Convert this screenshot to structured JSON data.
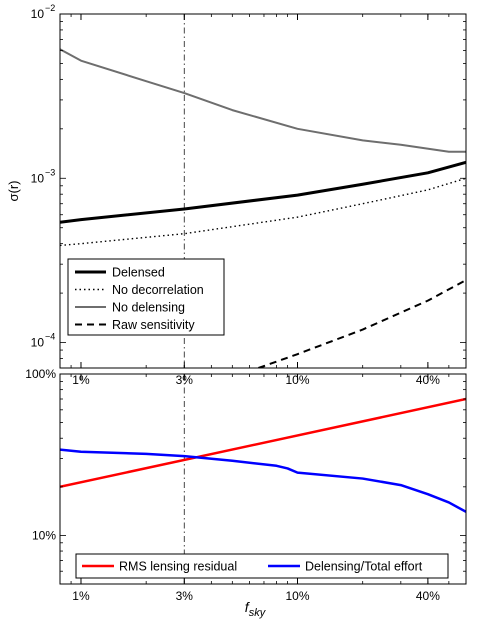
{
  "chart_data": [
    {
      "type": "line",
      "ylabel": "σ(r)",
      "yscale": "log",
      "xscale": "log",
      "xlim": [
        0.008,
        0.6
      ],
      "ylim": [
        7e-05,
        0.01
      ],
      "grid": false,
      "legend_position": "bottom-left",
      "x_ticks": [
        {
          "value": 0.01,
          "label": "1%"
        },
        {
          "value": 0.03,
          "label": "3%"
        },
        {
          "value": 0.1,
          "label": "10%"
        },
        {
          "value": 0.4,
          "label": "40%"
        }
      ],
      "y_ticks": [
        {
          "value": 0.0001,
          "base": "10",
          "exp": "−4"
        },
        {
          "value": 0.001,
          "base": "10",
          "exp": "−3"
        },
        {
          "value": 0.01,
          "base": "10",
          "exp": "−2"
        }
      ],
      "vline": {
        "x": 0.03,
        "style": "dash-dot"
      },
      "series": [
        {
          "name": "Delensed",
          "color": "#000000",
          "style": "solid-thick",
          "x": [
            0.008,
            0.01,
            0.03,
            0.1,
            0.2,
            0.4,
            0.6
          ],
          "y": [
            0.00054,
            0.00056,
            0.00065,
            0.00079,
            0.00092,
            0.00108,
            0.00125
          ]
        },
        {
          "name": "No decorrelation",
          "color": "#000000",
          "style": "dotted",
          "x": [
            0.008,
            0.01,
            0.03,
            0.1,
            0.2,
            0.4,
            0.6
          ],
          "y": [
            0.00039,
            0.0004,
            0.00046,
            0.00058,
            0.0007,
            0.00085,
            0.001
          ]
        },
        {
          "name": "No delensing",
          "color": "#6e6e6e",
          "style": "solid",
          "x": [
            0.008,
            0.01,
            0.02,
            0.03,
            0.05,
            0.1,
            0.2,
            0.3,
            0.5,
            0.6
          ],
          "y": [
            0.0061,
            0.0052,
            0.0039,
            0.0033,
            0.0026,
            0.002,
            0.0017,
            0.0016,
            0.00145,
            0.00145
          ]
        },
        {
          "name": "Raw sensitivity",
          "color": "#000000",
          "style": "dashed",
          "x": [
            0.066,
            0.1,
            0.2,
            0.4,
            0.6
          ],
          "y": [
            7e-05,
            8.5e-05,
            0.00012,
            0.00018,
            0.00024
          ]
        }
      ]
    },
    {
      "type": "line",
      "xlabel_base": "f",
      "xlabel_sub": "sky",
      "yscale": "log",
      "xscale": "log",
      "xlim": [
        0.008,
        0.6
      ],
      "ylim": [
        0.05,
        1.0
      ],
      "grid": false,
      "legend_position": "bottom",
      "x_ticks": [
        {
          "value": 0.01,
          "label": "1%"
        },
        {
          "value": 0.03,
          "label": "3%"
        },
        {
          "value": 0.1,
          "label": "10%"
        },
        {
          "value": 0.4,
          "label": "40%"
        }
      ],
      "y_ticks": [
        {
          "value": 0.1,
          "label": "10%"
        },
        {
          "value": 1.0,
          "label": "100%"
        }
      ],
      "vline": {
        "x": 0.03,
        "style": "dash-dot"
      },
      "series": [
        {
          "name": "RMS lensing residual",
          "color": "#ff0000",
          "x": [
            0.008,
            0.6
          ],
          "y": [
            0.2,
            0.7
          ]
        },
        {
          "name": "Delensing/Total effort",
          "color": "#0000ff",
          "x": [
            0.008,
            0.01,
            0.02,
            0.03,
            0.05,
            0.08,
            0.09,
            0.1,
            0.2,
            0.3,
            0.4,
            0.5,
            0.6
          ],
          "y": [
            0.34,
            0.33,
            0.32,
            0.31,
            0.29,
            0.27,
            0.26,
            0.245,
            0.225,
            0.205,
            0.18,
            0.16,
            0.14
          ]
        }
      ]
    }
  ]
}
